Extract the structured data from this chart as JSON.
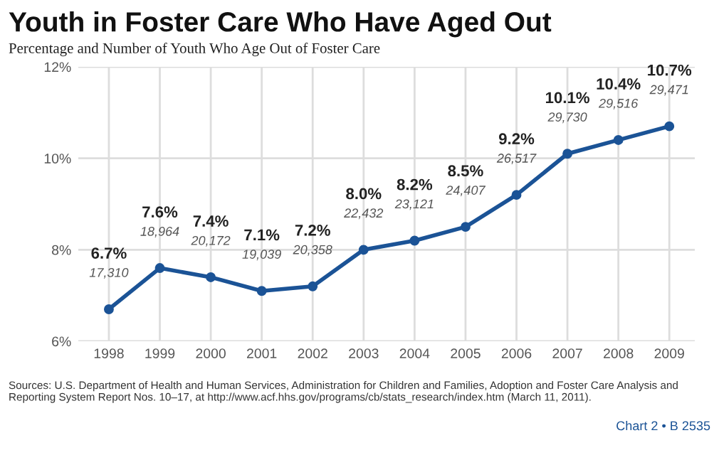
{
  "chart_data": {
    "type": "line",
    "title": "Youth in Foster Care Who Have Aged Out",
    "subtitle": "Percentage and Number of Youth Who Age Out of Foster Care",
    "categories": [
      "1998",
      "1999",
      "2000",
      "2001",
      "2002",
      "2003",
      "2004",
      "2005",
      "2006",
      "2007",
      "2008",
      "2009"
    ],
    "series": [
      {
        "color": "#1b5396",
        "values": [
          6.7,
          7.6,
          7.4,
          7.1,
          7.2,
          8.0,
          8.2,
          8.5,
          9.2,
          10.1,
          10.4,
          10.7
        ],
        "value_labels": [
          "6.7%\n17,310",
          "7.6%\n18,964",
          "7.4%\n20,172",
          "7.1%\n19,039",
          "7.2%\n20,358",
          "8.0%\n22,432",
          "8.2%\n23,121",
          "8.5%\n24,407",
          "9.2%\n26,517",
          "10.1%\n29,730",
          "10.4%\n29,516",
          "10.7%\n29,471"
        ]
      }
    ],
    "ylim": [
      6,
      12
    ],
    "yticks": [
      {
        "value": 6,
        "label": "6%"
      },
      {
        "value": 8,
        "label": "8%"
      },
      {
        "value": 10,
        "label": "10%"
      },
      {
        "value": 12,
        "label": "12%"
      }
    ],
    "grid": true,
    "marker": "circle",
    "line_style": "solid",
    "legend": false,
    "annotations": [
      "Sources: U.S. Department of Health and Human Services, Administration for Children and Families, Adoption and Foster Care Analysis and Reporting System Report Nos. 10–17, at http://www.acf.hhs.gov/programs/cb/stats_research/index.htm (March 11, 2011).",
      "Chart 2 • B 2535"
    ]
  }
}
